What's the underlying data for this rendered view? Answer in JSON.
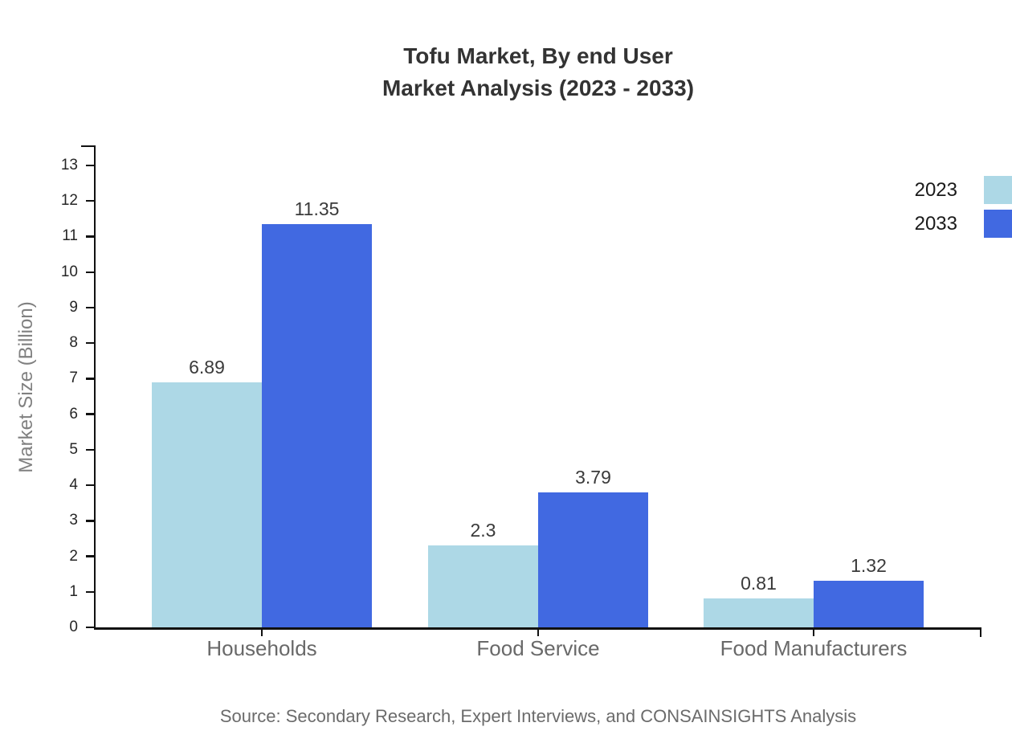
{
  "chart_data": {
    "type": "bar",
    "title": "Tofu Market, By end User Market Analysis (2023 - 2033)",
    "title_lines": [
      "Tofu Market, By end User",
      "Market Analysis (2023 - 2033)"
    ],
    "ylabel": "Market Size (Billion)",
    "xlabel": "",
    "categories": [
      "Households",
      "Food Service",
      "Food Manufacturers"
    ],
    "series": [
      {
        "name": "2023",
        "color": "#ADD8E6",
        "values": [
          6.89,
          2.3,
          0.81
        ],
        "labels": [
          "6.89",
          "2.3",
          "0.81"
        ]
      },
      {
        "name": "2033",
        "color": "#4169E1",
        "values": [
          11.35,
          3.79,
          1.32
        ],
        "labels": [
          "11.35",
          "3.79",
          "1.32"
        ]
      }
    ],
    "ylim": [
      0,
      13
    ],
    "yticks": [
      0,
      1,
      2,
      3,
      4,
      5,
      6,
      7,
      8,
      9,
      10,
      11,
      12,
      13
    ],
    "grid": false,
    "legend_position": "upper right, clipped at right edge",
    "source": "Source: Secondary Research, Expert Interviews, and CONSAINSIGHTS Analysis"
  },
  "colors": {
    "background": "#ffffff",
    "axis": "#111111",
    "title_text": "#333333",
    "tick_text": "#262626",
    "value_label_text": "#3a3a3a",
    "category_text": "#696969",
    "ylabel_text": "#808080",
    "source_text": "#6b6b6b",
    "legend_text": "#1a1a1a"
  }
}
